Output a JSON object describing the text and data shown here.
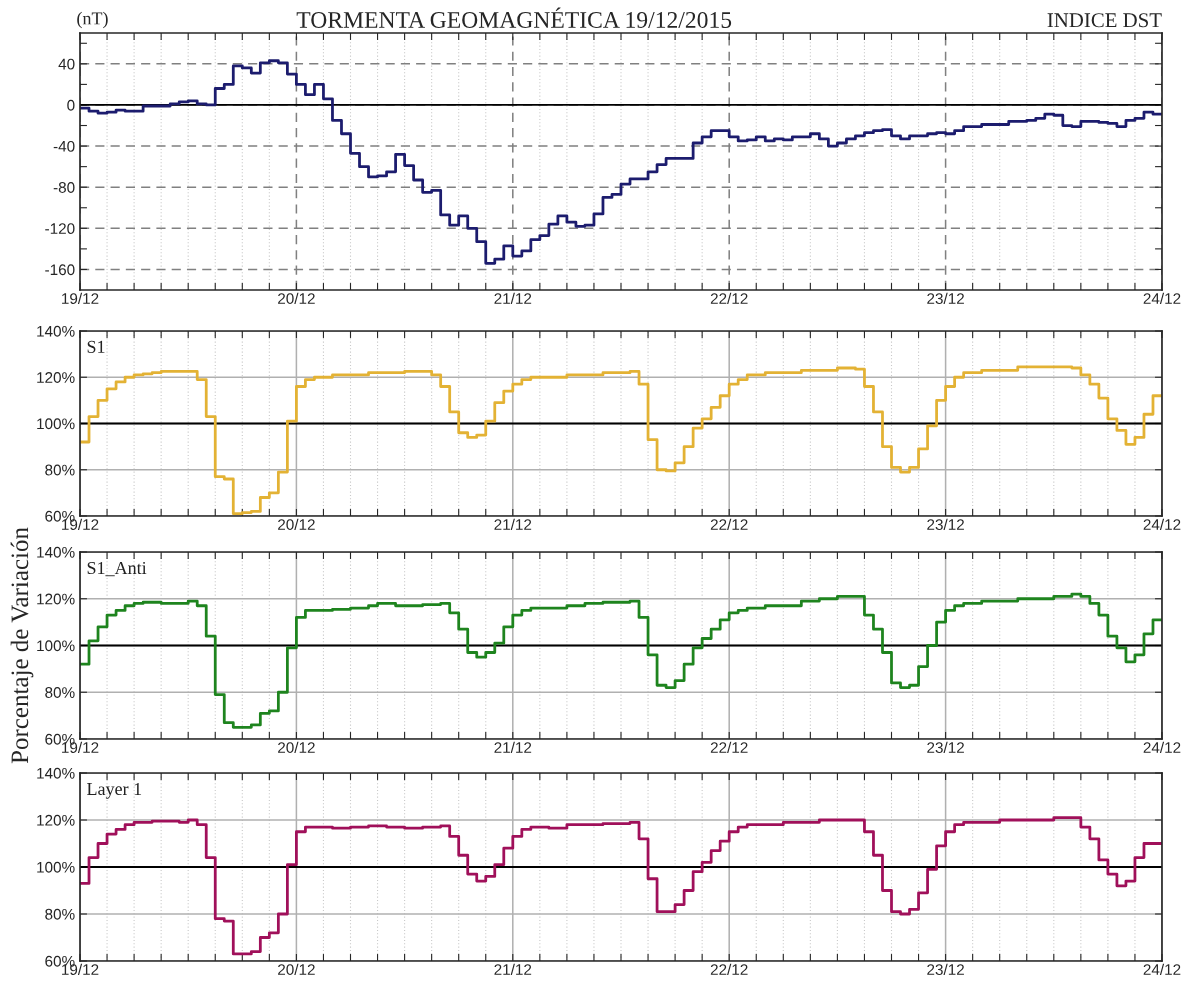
{
  "chart_data": [
    {
      "type": "step",
      "title": "TORMENTA GEOMAGNÉTICA 19/12/2015",
      "subtitle": "INDICE DST",
      "ylabel": "(nT)",
      "xlim": [
        "2015-12-19T00:00",
        "2015-12-24T00:00"
      ],
      "ylim": [
        -180,
        70
      ],
      "xticks": [
        {
          "value": "2015-12-19T00:00",
          "label": "19/12"
        },
        {
          "value": "2015-12-19T03:00",
          "label": null
        },
        {
          "value": "2015-12-19T06:00",
          "label": null
        },
        {
          "value": "2015-12-19T09:00",
          "label": null
        },
        {
          "value": "2015-12-19T12:00",
          "label": null
        },
        {
          "value": "2015-12-19T15:00",
          "label": null
        },
        {
          "value": "2015-12-19T18:00",
          "label": null
        },
        {
          "value": "2015-12-19T21:00",
          "label": null
        },
        {
          "value": "2015-12-20T00:00",
          "label": "20/12"
        },
        {
          "value": "2015-12-20T03:00",
          "label": null
        },
        {
          "value": "2015-12-20T06:00",
          "label": null
        },
        {
          "value": "2015-12-20T09:00",
          "label": null
        },
        {
          "value": "2015-12-20T12:00",
          "label": null
        },
        {
          "value": "2015-12-20T15:00",
          "label": null
        },
        {
          "value": "2015-12-20T18:00",
          "label": null
        },
        {
          "value": "2015-12-20T21:00",
          "label": null
        },
        {
          "value": "2015-12-21T00:00",
          "label": "21/12"
        },
        {
          "value": "2015-12-21T03:00",
          "label": null
        },
        {
          "value": "2015-12-21T06:00",
          "label": null
        },
        {
          "value": "2015-12-21T09:00",
          "label": null
        },
        {
          "value": "2015-12-21T12:00",
          "label": null
        },
        {
          "value": "2015-12-21T15:00",
          "label": null
        },
        {
          "value": "2015-12-21T18:00",
          "label": null
        },
        {
          "value": "2015-12-21T21:00",
          "label": null
        },
        {
          "value": "2015-12-22T00:00",
          "label": "22/12"
        },
        {
          "value": "2015-12-22T03:00",
          "label": null
        },
        {
          "value": "2015-12-22T06:00",
          "label": null
        },
        {
          "value": "2015-12-22T09:00",
          "label": null
        },
        {
          "value": "2015-12-22T12:00",
          "label": null
        },
        {
          "value": "2015-12-22T15:00",
          "label": null
        },
        {
          "value": "2015-12-22T18:00",
          "label": null
        },
        {
          "value": "2015-12-22T21:00",
          "label": null
        },
        {
          "value": "2015-12-23T00:00",
          "label": "23/12"
        },
        {
          "value": "2015-12-23T03:00",
          "label": null
        },
        {
          "value": "2015-12-23T06:00",
          "label": null
        },
        {
          "value": "2015-12-23T09:00",
          "label": null
        },
        {
          "value": "2015-12-23T12:00",
          "label": null
        },
        {
          "value": "2015-12-23T15:00",
          "label": null
        },
        {
          "value": "2015-12-23T18:00",
          "label": null
        },
        {
          "value": "2015-12-23T21:00",
          "label": null
        },
        {
          "value": "2015-12-24T00:00",
          "label": "24/12"
        }
      ],
      "yticks": [
        -160,
        {
          "value": -140,
          "label": null
        },
        -120,
        {
          "value": -100,
          "label": null
        },
        -80,
        {
          "value": -60,
          "label": null
        },
        -40,
        {
          "value": -20,
          "label": null
        },
        0,
        {
          "value": 20,
          "label": null
        },
        40,
        {
          "value": 60,
          "label": null
        }
      ],
      "grid": true,
      "ref_lines": [
        {
          "axis": "y",
          "value": 0,
          "color": "#000000"
        }
      ],
      "series": [
        {
          "color": "#1c1c6e",
          "x": [
            "2015-12-19T00:00",
            "2015-12-19T01:00",
            "2015-12-19T02:00",
            "2015-12-19T03:00",
            "2015-12-19T04:00",
            "2015-12-19T05:00",
            "2015-12-19T06:00",
            "2015-12-19T07:00",
            "2015-12-19T08:00",
            "2015-12-19T09:00",
            "2015-12-19T10:00",
            "2015-12-19T11:00",
            "2015-12-19T12:00",
            "2015-12-19T13:00",
            "2015-12-19T14:00",
            "2015-12-19T15:00",
            "2015-12-19T16:00",
            "2015-12-19T17:00",
            "2015-12-19T18:00",
            "2015-12-19T19:00",
            "2015-12-19T20:00",
            "2015-12-19T21:00",
            "2015-12-19T22:00",
            "2015-12-19T23:00",
            "2015-12-20T00:00",
            "2015-12-20T01:00",
            "2015-12-20T02:00",
            "2015-12-20T03:00",
            "2015-12-20T04:00",
            "2015-12-20T05:00",
            "2015-12-20T06:00",
            "2015-12-20T07:00",
            "2015-12-20T08:00",
            "2015-12-20T09:00",
            "2015-12-20T10:00",
            "2015-12-20T11:00",
            "2015-12-20T12:00",
            "2015-12-20T13:00",
            "2015-12-20T14:00",
            "2015-12-20T15:00",
            "2015-12-20T16:00",
            "2015-12-20T17:00",
            "2015-12-20T18:00",
            "2015-12-20T19:00",
            "2015-12-20T20:00",
            "2015-12-20T21:00",
            "2015-12-20T22:00",
            "2015-12-20T23:00",
            "2015-12-21T00:00",
            "2015-12-21T01:00",
            "2015-12-21T02:00",
            "2015-12-21T03:00",
            "2015-12-21T04:00",
            "2015-12-21T05:00",
            "2015-12-21T06:00",
            "2015-12-21T07:00",
            "2015-12-21T08:00",
            "2015-12-21T09:00",
            "2015-12-21T10:00",
            "2015-12-21T11:00",
            "2015-12-21T12:00",
            "2015-12-21T13:00",
            "2015-12-21T14:00",
            "2015-12-21T15:00",
            "2015-12-21T16:00",
            "2015-12-21T17:00",
            "2015-12-21T18:00",
            "2015-12-21T19:00",
            "2015-12-21T20:00",
            "2015-12-21T21:00",
            "2015-12-21T22:00",
            "2015-12-21T23:00",
            "2015-12-22T00:00",
            "2015-12-22T01:00",
            "2015-12-22T02:00",
            "2015-12-22T03:00",
            "2015-12-22T04:00",
            "2015-12-22T05:00",
            "2015-12-22T06:00",
            "2015-12-22T07:00",
            "2015-12-22T08:00",
            "2015-12-22T09:00",
            "2015-12-22T10:00",
            "2015-12-22T11:00",
            "2015-12-22T12:00",
            "2015-12-22T13:00",
            "2015-12-22T14:00",
            "2015-12-22T15:00",
            "2015-12-22T16:00",
            "2015-12-22T17:00",
            "2015-12-22T18:00",
            "2015-12-22T19:00",
            "2015-12-22T20:00",
            "2015-12-22T21:00",
            "2015-12-22T22:00",
            "2015-12-22T23:00",
            "2015-12-23T00:00",
            "2015-12-23T01:00",
            "2015-12-23T02:00",
            "2015-12-23T03:00",
            "2015-12-23T04:00",
            "2015-12-23T05:00",
            "2015-12-23T06:00",
            "2015-12-23T07:00",
            "2015-12-23T08:00",
            "2015-12-23T09:00",
            "2015-12-23T10:00",
            "2015-12-23T11:00",
            "2015-12-23T12:00",
            "2015-12-23T13:00",
            "2015-12-23T14:00",
            "2015-12-23T15:00",
            "2015-12-23T16:00",
            "2015-12-23T17:00",
            "2015-12-23T18:00",
            "2015-12-23T19:00",
            "2015-12-23T20:00",
            "2015-12-23T21:00",
            "2015-12-23T22:00",
            "2015-12-23T23:00",
            "2015-12-24T00:00"
          ],
          "values": [
            -3,
            -6,
            -8,
            -7,
            -5,
            -6,
            -6,
            -1,
            -1,
            -1,
            1,
            3,
            4,
            1,
            0,
            16,
            20,
            38,
            36,
            31,
            41,
            43,
            41,
            30,
            20,
            10,
            20,
            6,
            -15,
            -28,
            -47,
            -60,
            -70,
            -69,
            -65,
            -48,
            -59,
            -73,
            -85,
            -83,
            -107,
            -117,
            -108,
            -120,
            -133,
            -154,
            -150,
            -137,
            -147,
            -142,
            -131,
            -127,
            -116,
            -108,
            -114,
            -118,
            -117,
            -106,
            -90,
            -87,
            -77,
            -72,
            -72,
            -65,
            -58,
            -52,
            -52,
            -52,
            -37,
            -31,
            -25,
            -25,
            -31,
            -35,
            -34,
            -31,
            -35,
            -33,
            -34,
            -31,
            -31,
            -28,
            -33,
            -40,
            -37,
            -33,
            -30,
            -27,
            -25,
            -24,
            -30,
            -33,
            -30,
            -30,
            -28,
            -27,
            -28,
            -25,
            -21,
            -21,
            -19,
            -19,
            -19,
            -16,
            -16,
            -15,
            -13,
            -9,
            -10,
            -20,
            -21,
            -16,
            -16,
            -17,
            -18,
            -21,
            -15,
            -13,
            -7,
            -9,
            -9
          ]
        }
      ]
    },
    {
      "type": "step",
      "xlim": [
        "2015-12-19T00:00",
        "2015-12-24T00:00"
      ],
      "ylim": [
        60,
        140
      ],
      "xticks": [
        {
          "value": "2015-12-19T00:00",
          "label": "19/12"
        },
        {
          "value": "2015-12-19T03:00",
          "label": null
        },
        {
          "value": "2015-12-19T06:00",
          "label": null
        },
        {
          "value": "2015-12-19T09:00",
          "label": null
        },
        {
          "value": "2015-12-19T12:00",
          "label": null
        },
        {
          "value": "2015-12-19T15:00",
          "label": null
        },
        {
          "value": "2015-12-19T18:00",
          "label": null
        },
        {
          "value": "2015-12-19T21:00",
          "label": null
        },
        {
          "value": "2015-12-20T00:00",
          "label": "20/12"
        },
        {
          "value": "2015-12-20T03:00",
          "label": null
        },
        {
          "value": "2015-12-20T06:00",
          "label": null
        },
        {
          "value": "2015-12-20T09:00",
          "label": null
        },
        {
          "value": "2015-12-20T12:00",
          "label": null
        },
        {
          "value": "2015-12-20T15:00",
          "label": null
        },
        {
          "value": "2015-12-20T18:00",
          "label": null
        },
        {
          "value": "2015-12-20T21:00",
          "label": null
        },
        {
          "value": "2015-12-21T00:00",
          "label": "21/12"
        },
        {
          "value": "2015-12-21T03:00",
          "label": null
        },
        {
          "value": "2015-12-21T06:00",
          "label": null
        },
        {
          "value": "2015-12-21T09:00",
          "label": null
        },
        {
          "value": "2015-12-21T12:00",
          "label": null
        },
        {
          "value": "2015-12-21T15:00",
          "label": null
        },
        {
          "value": "2015-12-21T18:00",
          "label": null
        },
        {
          "value": "2015-12-21T21:00",
          "label": null
        },
        {
          "value": "2015-12-22T00:00",
          "label": "22/12"
        },
        {
          "value": "2015-12-22T03:00",
          "label": null
        },
        {
          "value": "2015-12-22T06:00",
          "label": null
        },
        {
          "value": "2015-12-22T09:00",
          "label": null
        },
        {
          "value": "2015-12-22T12:00",
          "label": null
        },
        {
          "value": "2015-12-22T15:00",
          "label": null
        },
        {
          "value": "2015-12-22T18:00",
          "label": null
        },
        {
          "value": "2015-12-22T21:00",
          "label": null
        },
        {
          "value": "2015-12-23T00:00",
          "label": "23/12"
        },
        {
          "value": "2015-12-23T03:00",
          "label": null
        },
        {
          "value": "2015-12-23T06:00",
          "label": null
        },
        {
          "value": "2015-12-23T09:00",
          "label": null
        },
        {
          "value": "2015-12-23T12:00",
          "label": null
        },
        {
          "value": "2015-12-23T15:00",
          "label": null
        },
        {
          "value": "2015-12-23T18:00",
          "label": null
        },
        {
          "value": "2015-12-23T21:00",
          "label": null
        },
        {
          "value": "2015-12-24T00:00",
          "label": "24/12"
        }
      ],
      "yticks": [
        {
          "value": 60,
          "label": "60%"
        },
        {
          "value": 80,
          "label": "80%"
        },
        {
          "value": 100,
          "label": "100%"
        },
        {
          "value": 120,
          "label": "120%"
        },
        {
          "value": 140,
          "label": "140%"
        }
      ],
      "grid": true,
      "ref_lines": [
        {
          "axis": "y",
          "value": 100,
          "color": "#000000"
        }
      ],
      "series": [
        {
          "name": "S1",
          "color": "#e3b234",
          "x": [
            "2015-12-19T00:00",
            "2015-12-19T01:00",
            "2015-12-19T02:00",
            "2015-12-19T03:00",
            "2015-12-19T04:00",
            "2015-12-19T05:00",
            "2015-12-19T06:00",
            "2015-12-19T07:00",
            "2015-12-19T08:00",
            "2015-12-19T09:00",
            "2015-12-19T13:00",
            "2015-12-19T14:00",
            "2015-12-19T15:00",
            "2015-12-19T16:00",
            "2015-12-19T17:00",
            "2015-12-19T18:00",
            "2015-12-19T19:00",
            "2015-12-19T20:00",
            "2015-12-19T21:00",
            "2015-12-19T22:00",
            "2015-12-19T23:00",
            "2015-12-20T00:00",
            "2015-12-20T01:00",
            "2015-12-20T02:00",
            "2015-12-20T04:00",
            "2015-12-20T08:00",
            "2015-12-20T12:00",
            "2015-12-20T15:00",
            "2015-12-20T16:00",
            "2015-12-20T17:00",
            "2015-12-20T18:00",
            "2015-12-20T19:00",
            "2015-12-20T20:00",
            "2015-12-20T21:00",
            "2015-12-20T22:00",
            "2015-12-20T23:00",
            "2015-12-21T00:00",
            "2015-12-21T01:00",
            "2015-12-21T02:00",
            "2015-12-21T06:00",
            "2015-12-21T10:00",
            "2015-12-21T13:00",
            "2015-12-21T14:00",
            "2015-12-21T15:00",
            "2015-12-21T16:00",
            "2015-12-21T17:00",
            "2015-12-21T18:00",
            "2015-12-21T19:00",
            "2015-12-21T20:00",
            "2015-12-21T21:00",
            "2015-12-21T22:00",
            "2015-12-21T23:00",
            "2015-12-22T00:00",
            "2015-12-22T01:00",
            "2015-12-22T02:00",
            "2015-12-22T04:00",
            "2015-12-22T08:00",
            "2015-12-22T12:00",
            "2015-12-22T14:00",
            "2015-12-22T15:00",
            "2015-12-22T16:00",
            "2015-12-22T17:00",
            "2015-12-22T18:00",
            "2015-12-22T19:00",
            "2015-12-22T20:00",
            "2015-12-22T21:00",
            "2015-12-22T22:00",
            "2015-12-22T23:00",
            "2015-12-23T00:00",
            "2015-12-23T01:00",
            "2015-12-23T02:00",
            "2015-12-23T04:00",
            "2015-12-23T08:00",
            "2015-12-23T14:00",
            "2015-12-23T15:00",
            "2015-12-23T16:00",
            "2015-12-23T17:00",
            "2015-12-23T18:00",
            "2015-12-23T19:00",
            "2015-12-23T20:00",
            "2015-12-23T21:00",
            "2015-12-23T22:00",
            "2015-12-23T23:00",
            "2015-12-24T00:00"
          ],
          "values": [
            92,
            103,
            110,
            115,
            118,
            120,
            121,
            121.5,
            122,
            122.5,
            119,
            103,
            77,
            76,
            61,
            61.5,
            62,
            68,
            70,
            79,
            101,
            116,
            119,
            120,
            121,
            122,
            122.5,
            121,
            116,
            105,
            96,
            94,
            95,
            101,
            109,
            114,
            117,
            119,
            120,
            121,
            122,
            122.5,
            117,
            93,
            80,
            79.5,
            83,
            90,
            98,
            102,
            107,
            112,
            117,
            119,
            121,
            122,
            123,
            124,
            123.5,
            116,
            105,
            90,
            81,
            79,
            81,
            89,
            99,
            110,
            116,
            120,
            122,
            123,
            124.5,
            124,
            121,
            117,
            111,
            102,
            97,
            91,
            94,
            104,
            112,
            112
          ]
        }
      ]
    },
    {
      "type": "step",
      "ylabel": "Porcentaje de Variación",
      "xlim": [
        "2015-12-19T00:00",
        "2015-12-24T00:00"
      ],
      "ylim": [
        60,
        140
      ],
      "xticks": [
        {
          "value": "2015-12-19T00:00",
          "label": "19/12"
        },
        {
          "value": "2015-12-19T03:00",
          "label": null
        },
        {
          "value": "2015-12-19T06:00",
          "label": null
        },
        {
          "value": "2015-12-19T09:00",
          "label": null
        },
        {
          "value": "2015-12-19T12:00",
          "label": null
        },
        {
          "value": "2015-12-19T15:00",
          "label": null
        },
        {
          "value": "2015-12-19T18:00",
          "label": null
        },
        {
          "value": "2015-12-19T21:00",
          "label": null
        },
        {
          "value": "2015-12-20T00:00",
          "label": "20/12"
        },
        {
          "value": "2015-12-20T03:00",
          "label": null
        },
        {
          "value": "2015-12-20T06:00",
          "label": null
        },
        {
          "value": "2015-12-20T09:00",
          "label": null
        },
        {
          "value": "2015-12-20T12:00",
          "label": null
        },
        {
          "value": "2015-12-20T15:00",
          "label": null
        },
        {
          "value": "2015-12-20T18:00",
          "label": null
        },
        {
          "value": "2015-12-20T21:00",
          "label": null
        },
        {
          "value": "2015-12-21T00:00",
          "label": "21/12"
        },
        {
          "value": "2015-12-21T03:00",
          "label": null
        },
        {
          "value": "2015-12-21T06:00",
          "label": null
        },
        {
          "value": "2015-12-21T09:00",
          "label": null
        },
        {
          "value": "2015-12-21T12:00",
          "label": null
        },
        {
          "value": "2015-12-21T15:00",
          "label": null
        },
        {
          "value": "2015-12-21T18:00",
          "label": null
        },
        {
          "value": "2015-12-21T21:00",
          "label": null
        },
        {
          "value": "2015-12-22T00:00",
          "label": "22/12"
        },
        {
          "value": "2015-12-22T03:00",
          "label": null
        },
        {
          "value": "2015-12-22T06:00",
          "label": null
        },
        {
          "value": "2015-12-22T09:00",
          "label": null
        },
        {
          "value": "2015-12-22T12:00",
          "label": null
        },
        {
          "value": "2015-12-22T15:00",
          "label": null
        },
        {
          "value": "2015-12-22T18:00",
          "label": null
        },
        {
          "value": "2015-12-22T21:00",
          "label": null
        },
        {
          "value": "2015-12-23T00:00",
          "label": "23/12"
        },
        {
          "value": "2015-12-23T03:00",
          "label": null
        },
        {
          "value": "2015-12-23T06:00",
          "label": null
        },
        {
          "value": "2015-12-23T09:00",
          "label": null
        },
        {
          "value": "2015-12-23T12:00",
          "label": null
        },
        {
          "value": "2015-12-23T15:00",
          "label": null
        },
        {
          "value": "2015-12-23T18:00",
          "label": null
        },
        {
          "value": "2015-12-23T21:00",
          "label": null
        },
        {
          "value": "2015-12-24T00:00",
          "label": "24/12"
        }
      ],
      "yticks": [
        {
          "value": 60,
          "label": "60%"
        },
        {
          "value": 80,
          "label": "80%"
        },
        {
          "value": 100,
          "label": "100%"
        },
        {
          "value": 120,
          "label": "120%"
        },
        {
          "value": 140,
          "label": "140%"
        }
      ],
      "grid": true,
      "ref_lines": [
        {
          "axis": "y",
          "value": 100,
          "color": "#000000"
        }
      ],
      "series": [
        {
          "name": "S1_Anti",
          "color": "#1e841e",
          "x": [
            "2015-12-19T00:00",
            "2015-12-19T01:00",
            "2015-12-19T02:00",
            "2015-12-19T03:00",
            "2015-12-19T04:00",
            "2015-12-19T05:00",
            "2015-12-19T06:00",
            "2015-12-19T07:00",
            "2015-12-19T09:00",
            "2015-12-19T11:00",
            "2015-12-19T12:00",
            "2015-12-19T13:00",
            "2015-12-19T14:00",
            "2015-12-19T15:00",
            "2015-12-19T16:00",
            "2015-12-19T17:00",
            "2015-12-19T19:00",
            "2015-12-19T20:00",
            "2015-12-19T21:00",
            "2015-12-19T22:00",
            "2015-12-19T23:00",
            "2015-12-20T00:00",
            "2015-12-20T01:00",
            "2015-12-20T04:00",
            "2015-12-20T06:00",
            "2015-12-20T08:00",
            "2015-12-20T09:00",
            "2015-12-20T11:00",
            "2015-12-20T14:00",
            "2015-12-20T16:00",
            "2015-12-20T17:00",
            "2015-12-20T18:00",
            "2015-12-20T19:00",
            "2015-12-20T20:00",
            "2015-12-20T21:00",
            "2015-12-20T22:00",
            "2015-12-20T23:00",
            "2015-12-21T00:00",
            "2015-12-21T01:00",
            "2015-12-21T02:00",
            "2015-12-21T04:00",
            "2015-12-21T06:00",
            "2015-12-21T08:00",
            "2015-12-21T10:00",
            "2015-12-21T13:00",
            "2015-12-21T14:00",
            "2015-12-21T15:00",
            "2015-12-21T16:00",
            "2015-12-21T17:00",
            "2015-12-21T18:00",
            "2015-12-21T19:00",
            "2015-12-21T20:00",
            "2015-12-21T21:00",
            "2015-12-21T22:00",
            "2015-12-21T23:00",
            "2015-12-22T00:00",
            "2015-12-22T01:00",
            "2015-12-22T02:00",
            "2015-12-22T04:00",
            "2015-12-22T08:00",
            "2015-12-22T10:00",
            "2015-12-22T12:00",
            "2015-12-22T14:00",
            "2015-12-22T15:00",
            "2015-12-22T16:00",
            "2015-12-22T17:00",
            "2015-12-22T18:00",
            "2015-12-22T19:00",
            "2015-12-22T20:00",
            "2015-12-22T21:00",
            "2015-12-22T22:00",
            "2015-12-22T23:00",
            "2015-12-23T00:00",
            "2015-12-23T01:00",
            "2015-12-23T02:00",
            "2015-12-23T04:00",
            "2015-12-23T08:00",
            "2015-12-23T12:00",
            "2015-12-23T14:00",
            "2015-12-23T15:00",
            "2015-12-23T16:00",
            "2015-12-23T17:00",
            "2015-12-23T18:00",
            "2015-12-23T19:00",
            "2015-12-23T20:00",
            "2015-12-23T21:00",
            "2015-12-23T22:00",
            "2015-12-23T23:00",
            "2015-12-24T00:00"
          ],
          "values": [
            92,
            102,
            108,
            113,
            115,
            117,
            118,
            118.5,
            118,
            118,
            119,
            117,
            104,
            79,
            67,
            65,
            66,
            71,
            72,
            80,
            99,
            112,
            115,
            115.5,
            116,
            117,
            118,
            117,
            117.5,
            118,
            114,
            107,
            97,
            95,
            97,
            101,
            108,
            113,
            115,
            116,
            116,
            117,
            118,
            118.5,
            119,
            112,
            96,
            83,
            82,
            85,
            92,
            99,
            103,
            107,
            111,
            114,
            115,
            116,
            117,
            119,
            120,
            121,
            121,
            113,
            107,
            97,
            84,
            82,
            83,
            91,
            100,
            110,
            115,
            117,
            118,
            119,
            120,
            121,
            122,
            121,
            118,
            113,
            104,
            99,
            93,
            96,
            105,
            111,
            111
          ]
        }
      ]
    },
    {
      "type": "step",
      "xlim": [
        "2015-12-19T00:00",
        "2015-12-24T00:00"
      ],
      "ylim": [
        60,
        140
      ],
      "xticks": [
        {
          "value": "2015-12-19T00:00",
          "label": "19/12"
        },
        {
          "value": "2015-12-19T03:00",
          "label": null
        },
        {
          "value": "2015-12-19T06:00",
          "label": null
        },
        {
          "value": "2015-12-19T09:00",
          "label": null
        },
        {
          "value": "2015-12-19T12:00",
          "label": null
        },
        {
          "value": "2015-12-19T15:00",
          "label": null
        },
        {
          "value": "2015-12-19T18:00",
          "label": null
        },
        {
          "value": "2015-12-19T21:00",
          "label": null
        },
        {
          "value": "2015-12-20T00:00",
          "label": "20/12"
        },
        {
          "value": "2015-12-20T03:00",
          "label": null
        },
        {
          "value": "2015-12-20T06:00",
          "label": null
        },
        {
          "value": "2015-12-20T09:00",
          "label": null
        },
        {
          "value": "2015-12-20T12:00",
          "label": null
        },
        {
          "value": "2015-12-20T15:00",
          "label": null
        },
        {
          "value": "2015-12-20T18:00",
          "label": null
        },
        {
          "value": "2015-12-20T21:00",
          "label": null
        },
        {
          "value": "2015-12-21T00:00",
          "label": "21/12"
        },
        {
          "value": "2015-12-21T03:00",
          "label": null
        },
        {
          "value": "2015-12-21T06:00",
          "label": null
        },
        {
          "value": "2015-12-21T09:00",
          "label": null
        },
        {
          "value": "2015-12-21T12:00",
          "label": null
        },
        {
          "value": "2015-12-21T15:00",
          "label": null
        },
        {
          "value": "2015-12-21T18:00",
          "label": null
        },
        {
          "value": "2015-12-21T21:00",
          "label": null
        },
        {
          "value": "2015-12-22T00:00",
          "label": "22/12"
        },
        {
          "value": "2015-12-22T03:00",
          "label": null
        },
        {
          "value": "2015-12-22T06:00",
          "label": null
        },
        {
          "value": "2015-12-22T09:00",
          "label": null
        },
        {
          "value": "2015-12-22T12:00",
          "label": null
        },
        {
          "value": "2015-12-22T15:00",
          "label": null
        },
        {
          "value": "2015-12-22T18:00",
          "label": null
        },
        {
          "value": "2015-12-22T21:00",
          "label": null
        },
        {
          "value": "2015-12-23T00:00",
          "label": "23/12"
        },
        {
          "value": "2015-12-23T03:00",
          "label": null
        },
        {
          "value": "2015-12-23T06:00",
          "label": null
        },
        {
          "value": "2015-12-23T09:00",
          "label": null
        },
        {
          "value": "2015-12-23T12:00",
          "label": null
        },
        {
          "value": "2015-12-23T15:00",
          "label": null
        },
        {
          "value": "2015-12-23T18:00",
          "label": null
        },
        {
          "value": "2015-12-23T21:00",
          "label": null
        },
        {
          "value": "2015-12-24T00:00",
          "label": "24/12"
        }
      ],
      "yticks": [
        {
          "value": 60,
          "label": "60%"
        },
        {
          "value": 80,
          "label": "80%"
        },
        {
          "value": 100,
          "label": "100%"
        },
        {
          "value": 120,
          "label": "120%"
        },
        {
          "value": 140,
          "label": "140%"
        }
      ],
      "grid": true,
      "ref_lines": [
        {
          "axis": "y",
          "value": 100,
          "color": "#000000"
        }
      ],
      "series": [
        {
          "name": "Layer 1",
          "color": "#a0105a",
          "x": [
            "2015-12-19T00:00",
            "2015-12-19T01:00",
            "2015-12-19T02:00",
            "2015-12-19T03:00",
            "2015-12-19T04:00",
            "2015-12-19T05:00",
            "2015-12-19T06:00",
            "2015-12-19T08:00",
            "2015-12-19T11:00",
            "2015-12-19T12:00",
            "2015-12-19T13:00",
            "2015-12-19T14:00",
            "2015-12-19T15:00",
            "2015-12-19T16:00",
            "2015-12-19T17:00",
            "2015-12-19T19:00",
            "2015-12-19T20:00",
            "2015-12-19T21:00",
            "2015-12-19T22:00",
            "2015-12-19T23:00",
            "2015-12-20T00:00",
            "2015-12-20T01:00",
            "2015-12-20T04:00",
            "2015-12-20T06:00",
            "2015-12-20T08:00",
            "2015-12-20T10:00",
            "2015-12-20T12:00",
            "2015-12-20T14:00",
            "2015-12-20T16:00",
            "2015-12-20T17:00",
            "2015-12-20T18:00",
            "2015-12-20T19:00",
            "2015-12-20T20:00",
            "2015-12-20T21:00",
            "2015-12-20T22:00",
            "2015-12-20T23:00",
            "2015-12-21T00:00",
            "2015-12-21T01:00",
            "2015-12-21T02:00",
            "2015-12-21T04:00",
            "2015-12-21T06:00",
            "2015-12-21T10:00",
            "2015-12-21T13:00",
            "2015-12-21T14:00",
            "2015-12-21T15:00",
            "2015-12-21T16:00",
            "2015-12-21T17:00",
            "2015-12-21T18:00",
            "2015-12-21T19:00",
            "2015-12-21T20:00",
            "2015-12-21T21:00",
            "2015-12-21T22:00",
            "2015-12-21T23:00",
            "2015-12-22T00:00",
            "2015-12-22T01:00",
            "2015-12-22T02:00",
            "2015-12-22T06:00",
            "2015-12-22T10:00",
            "2015-12-22T14:00",
            "2015-12-22T15:00",
            "2015-12-22T16:00",
            "2015-12-22T17:00",
            "2015-12-22T18:00",
            "2015-12-22T19:00",
            "2015-12-22T20:00",
            "2015-12-22T21:00",
            "2015-12-22T22:00",
            "2015-12-22T23:00",
            "2015-12-23T00:00",
            "2015-12-23T01:00",
            "2015-12-23T02:00",
            "2015-12-23T06:00",
            "2015-12-23T10:00",
            "2015-12-23T12:00",
            "2015-12-23T14:00",
            "2015-12-23T15:00",
            "2015-12-23T16:00",
            "2015-12-23T17:00",
            "2015-12-23T18:00",
            "2015-12-23T19:00",
            "2015-12-23T20:00",
            "2015-12-23T21:00",
            "2015-12-23T22:00",
            "2015-12-24T00:00"
          ],
          "values": [
            93,
            104,
            110,
            114,
            116,
            118,
            119,
            119.5,
            119,
            120,
            118,
            104,
            78,
            77,
            63,
            64,
            70,
            72,
            80,
            101,
            115,
            117,
            116.5,
            117,
            117.5,
            117,
            116.5,
            117,
            117.5,
            113,
            105,
            97,
            94,
            96,
            101,
            108,
            113,
            116,
            117,
            116.5,
            118,
            118.5,
            119,
            112,
            95,
            81,
            81,
            84,
            90,
            98,
            102,
            107,
            111,
            115,
            117,
            118,
            119,
            120,
            120,
            115,
            105,
            90,
            81,
            80,
            82,
            89,
            99,
            109,
            115,
            118,
            119,
            120,
            120,
            121,
            121,
            117,
            112,
            103,
            97,
            92,
            94,
            104,
            110,
            110
          ]
        }
      ]
    }
  ]
}
